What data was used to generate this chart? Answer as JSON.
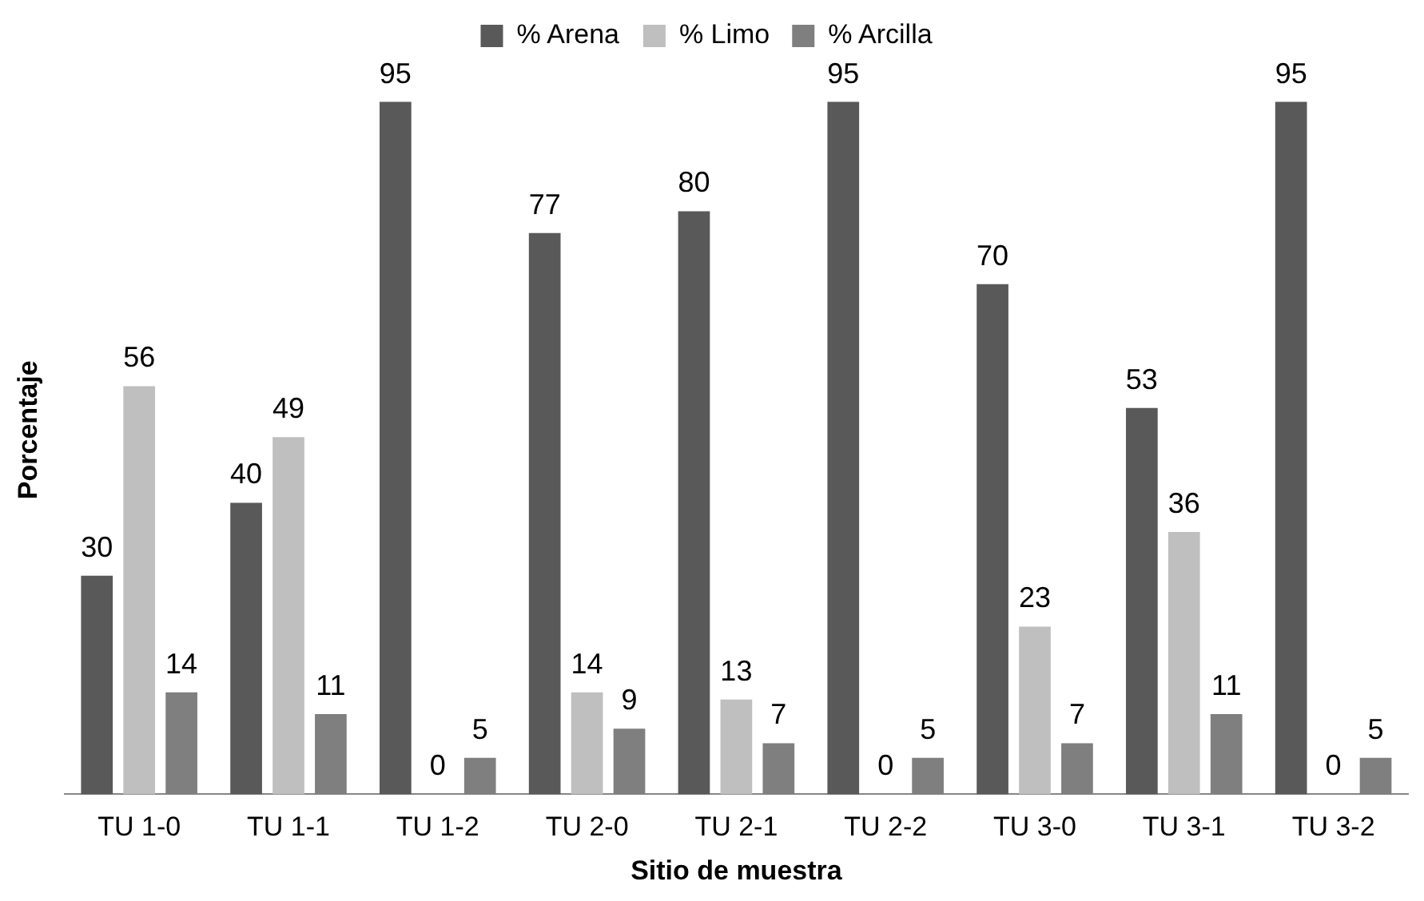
{
  "chart_data": {
    "type": "bar",
    "xlabel": "Sitio de muestra",
    "ylabel": "Porcentaje",
    "categories": [
      "TU 1-0",
      "TU 1-1",
      "TU 1-2",
      "TU 2-0",
      "TU 2-1",
      "TU 2-2",
      "TU 3-0",
      "TU 3-1",
      "TU 3-2"
    ],
    "series": [
      {
        "name": "% Arena",
        "color": "#595959",
        "values": [
          30,
          40,
          95,
          77,
          80,
          95,
          70,
          53,
          95
        ]
      },
      {
        "name": "% Limo",
        "color": "#bfbfbf",
        "values": [
          56,
          49,
          0,
          14,
          13,
          0,
          23,
          36,
          0
        ]
      },
      {
        "name": "% Arcilla",
        "color": "#7f7f7f",
        "values": [
          14,
          11,
          5,
          9,
          7,
          5,
          7,
          11,
          5
        ]
      }
    ],
    "data_labels": true,
    "legend": "top"
  }
}
